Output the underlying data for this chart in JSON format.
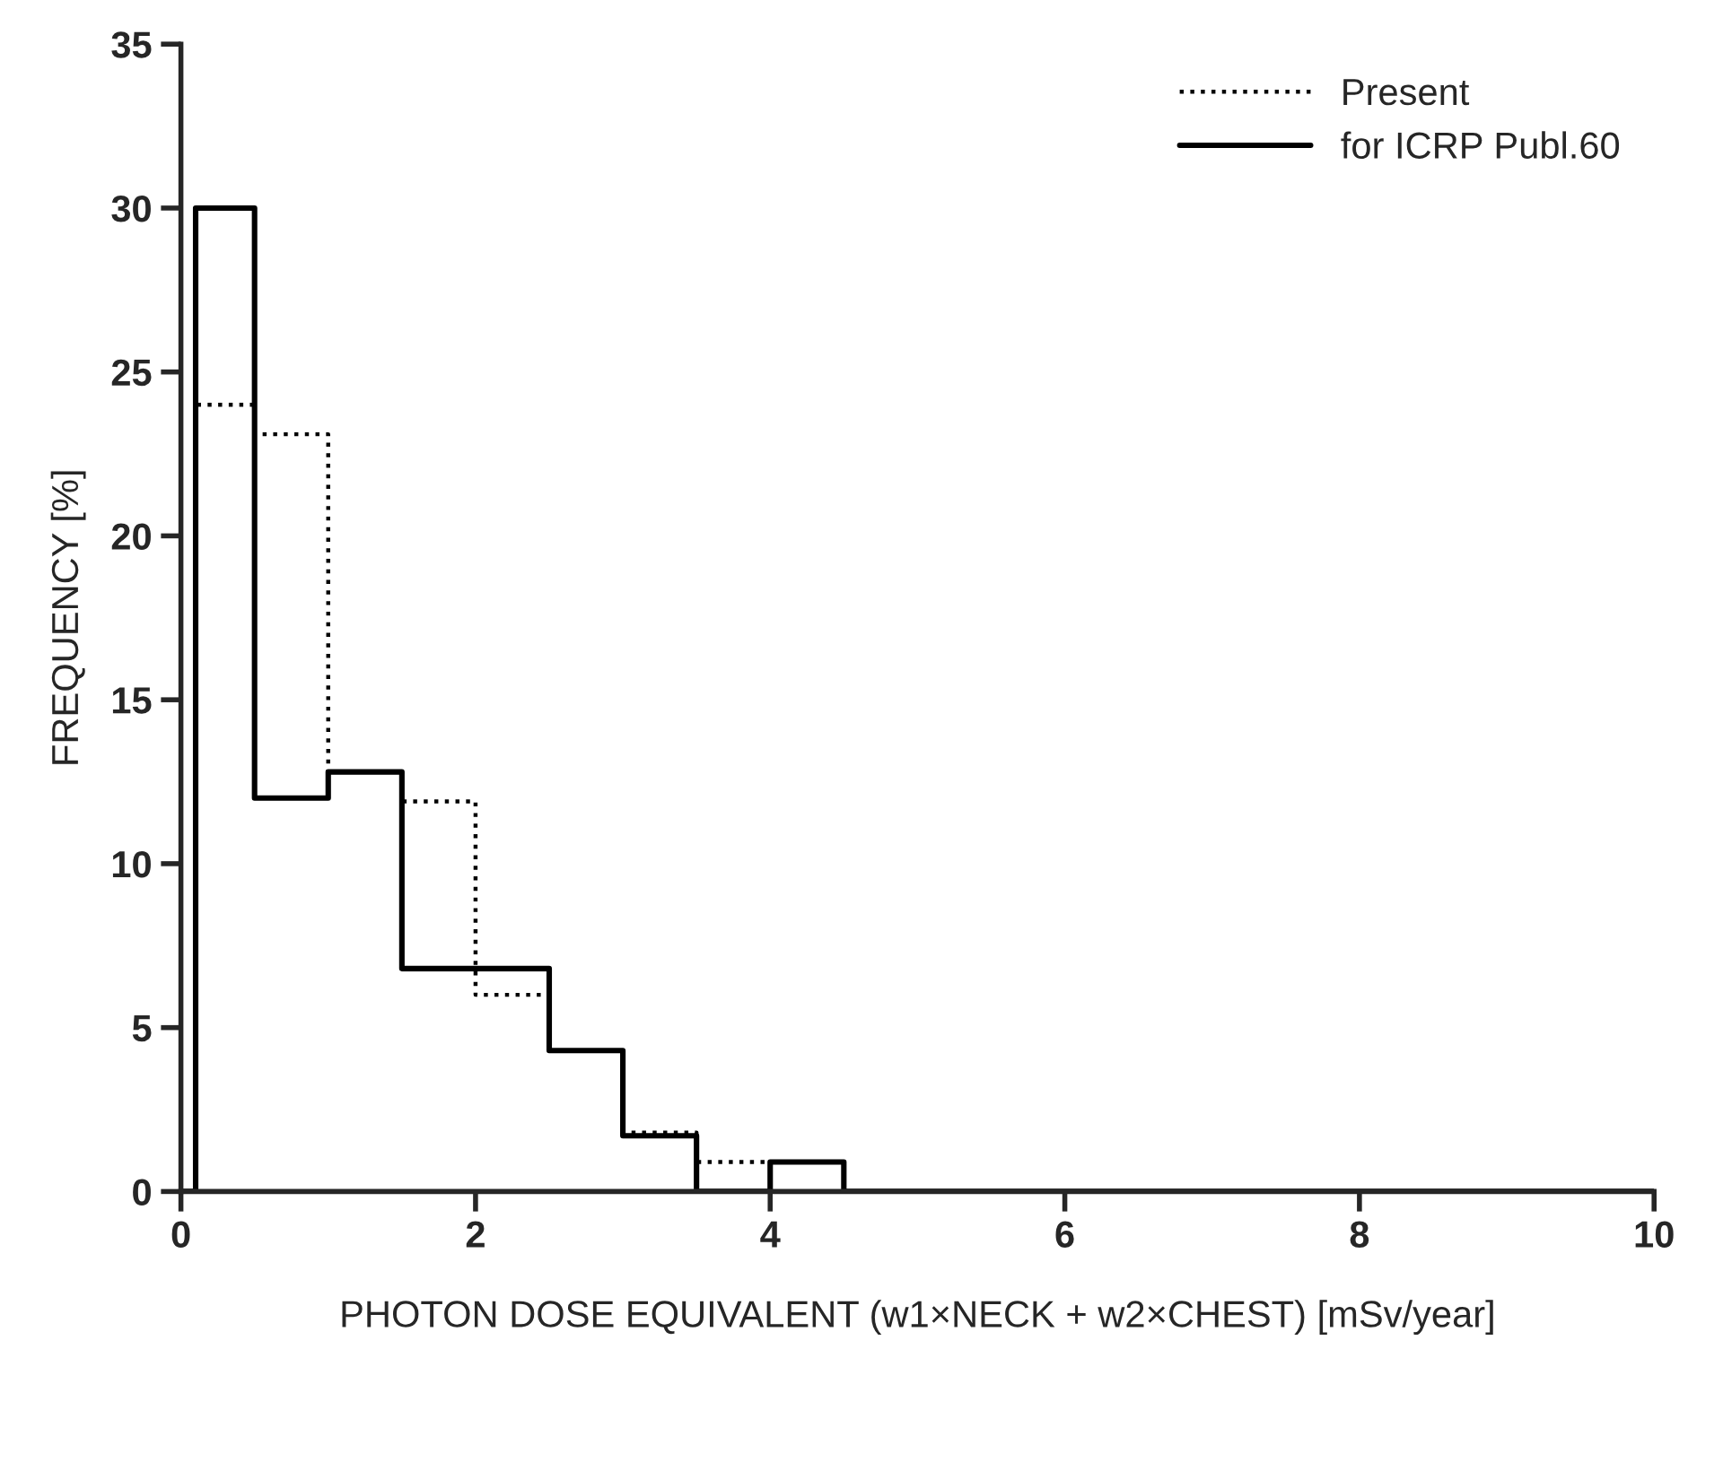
{
  "chart_data": {
    "type": "step",
    "xlabel": "PHOTON DOSE EQUIVALENT (w1×NECK + w2×CHEST) [mSv/year]",
    "ylabel": "FREQUENCY [%]",
    "x": [
      0,
      0.1,
      0.5,
      1,
      1.5,
      2,
      2.5,
      3,
      3.5,
      4,
      4.5,
      10
    ],
    "series": [
      {
        "name": "Present",
        "color": "#000000",
        "line_style": "dotted",
        "values": [
          0,
          24,
          23.1,
          12.8,
          11.9,
          6.0,
          4.3,
          1.8,
          0.9,
          0.9,
          0,
          0
        ]
      },
      {
        "name": "for ICRP Publ.60",
        "color": "#000000",
        "line_style": "solid",
        "values": [
          0,
          30,
          12,
          12.8,
          6.8,
          6.8,
          4.3,
          1.7,
          0,
          0.9,
          0,
          0
        ]
      }
    ],
    "xlim": [
      0,
      10
    ],
    "ylim": [
      0,
      35
    ],
    "xticks": [
      0,
      2,
      4,
      6,
      8,
      10
    ],
    "yticks": [
      0,
      5,
      10,
      15,
      20,
      25,
      30,
      35
    ],
    "legend": "top right",
    "grid": false
  }
}
